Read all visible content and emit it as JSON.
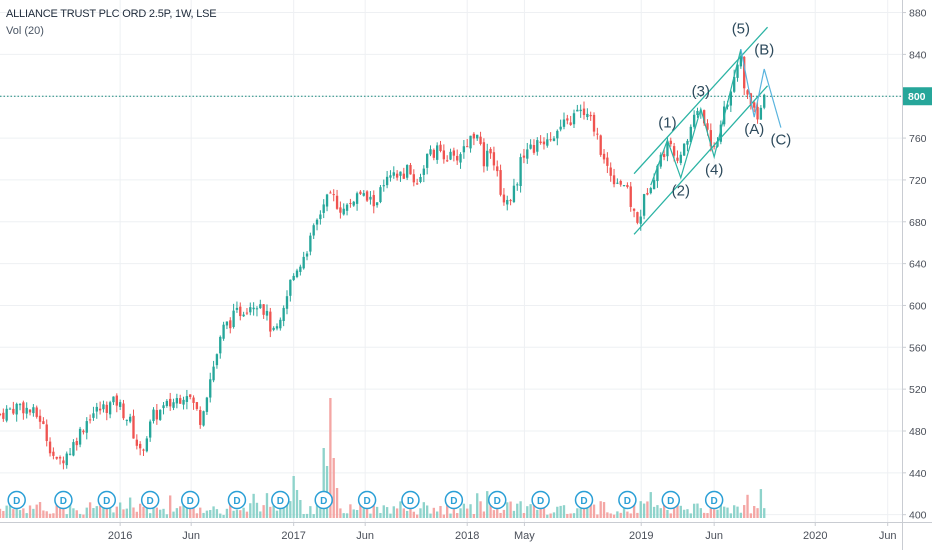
{
  "header": {
    "symbol_title": "ALLIANCE TRUST PLC ORD 2.5P, 1W, LSE",
    "volume_label": "Vol (20)"
  },
  "colors": {
    "up": "#26a69a",
    "down": "#ef5350",
    "vol_up": "#8ed3cb",
    "vol_down": "#f4a6a4",
    "grid": "#eef0f3",
    "axis_text": "#4a4f59",
    "price_line": "#1a8a7d",
    "channel": "#2bb3a4",
    "wave_label": "#2d4a5c",
    "projection": "#5ab4de",
    "badge_border": "#2a9fd6"
  },
  "chart_data": {
    "type": "candlestick",
    "title": "ALLIANCE TRUST PLC ORD 2.5P, 1W, LSE",
    "y_axis": {
      "ticks": [
        400,
        440,
        480,
        520,
        560,
        600,
        640,
        680,
        720,
        760,
        800,
        840,
        880
      ],
      "range": [
        393,
        892
      ]
    },
    "x_axis": {
      "ticks": [
        {
          "label": "2016",
          "date": "2016-01-04"
        },
        {
          "label": "Jun",
          "date": "2016-06-01"
        },
        {
          "label": "2017",
          "date": "2017-01-02"
        },
        {
          "label": "Jun",
          "date": "2017-06-01"
        },
        {
          "label": "2018",
          "date": "2018-01-01"
        },
        {
          "label": "May",
          "date": "2018-05-01"
        },
        {
          "label": "2019",
          "date": "2019-01-01"
        },
        {
          "label": "Jun",
          "date": "2019-06-03"
        },
        {
          "label": "2020",
          "date": "2020-01-01"
        },
        {
          "label": "Jun",
          "date": "2020-06-01"
        }
      ],
      "range": [
        "2015-04-27",
        "2020-07-01"
      ]
    },
    "current_price": {
      "value": 800,
      "label": "800"
    },
    "price_anchors": [
      [
        "2015-04-27",
        496
      ],
      [
        "2015-06-08",
        505
      ],
      [
        "2015-07-20",
        492
      ],
      [
        "2015-08-24",
        448
      ],
      [
        "2015-09-21",
        462
      ],
      [
        "2015-11-02",
        496
      ],
      [
        "2015-12-28",
        508
      ],
      [
        "2016-01-25",
        488
      ],
      [
        "2016-02-15",
        458
      ],
      [
        "2016-03-14",
        494
      ],
      [
        "2016-04-25",
        508
      ],
      [
        "2016-05-23",
        518
      ],
      [
        "2016-06-20",
        492
      ],
      [
        "2016-07-11",
        530
      ],
      [
        "2016-08-08",
        578
      ],
      [
        "2016-09-05",
        592
      ],
      [
        "2016-10-03",
        602
      ],
      [
        "2016-10-24",
        605
      ],
      [
        "2016-11-21",
        572
      ],
      [
        "2016-12-05",
        580
      ],
      [
        "2016-12-26",
        622
      ],
      [
        "2017-01-16",
        642
      ],
      [
        "2017-02-06",
        662
      ],
      [
        "2017-03-06",
        698
      ],
      [
        "2017-03-27",
        702
      ],
      [
        "2017-04-17",
        690
      ],
      [
        "2017-05-15",
        706
      ],
      [
        "2017-06-19",
        698
      ],
      [
        "2017-07-17",
        718
      ],
      [
        "2017-08-28",
        728
      ],
      [
        "2017-09-18",
        718
      ],
      [
        "2017-10-09",
        742
      ],
      [
        "2017-11-06",
        748
      ],
      [
        "2017-12-04",
        738
      ],
      [
        "2018-01-08",
        760
      ],
      [
        "2018-01-22",
        768
      ],
      [
        "2018-02-05",
        730
      ],
      [
        "2018-02-19",
        752
      ],
      [
        "2018-03-19",
        698
      ],
      [
        "2018-04-09",
        710
      ],
      [
        "2018-04-30",
        748
      ],
      [
        "2018-05-28",
        752
      ],
      [
        "2018-06-18",
        762
      ],
      [
        "2018-07-16",
        768
      ],
      [
        "2018-08-13",
        780
      ],
      [
        "2018-08-27",
        786
      ],
      [
        "2018-09-24",
        772
      ],
      [
        "2018-10-15",
        738
      ],
      [
        "2018-11-05",
        722
      ],
      [
        "2018-11-26",
        716
      ],
      [
        "2018-12-24",
        678
      ],
      [
        "2019-01-14",
        712
      ],
      [
        "2019-02-18",
        748
      ],
      [
        "2019-03-04",
        756
      ],
      [
        "2019-03-25",
        738
      ],
      [
        "2019-04-15",
        772
      ],
      [
        "2019-04-29",
        788
      ],
      [
        "2019-05-20",
        770
      ],
      [
        "2019-06-03",
        745
      ],
      [
        "2019-06-24",
        790
      ],
      [
        "2019-07-15",
        812
      ],
      [
        "2019-07-29",
        838
      ],
      [
        "2019-08-05",
        810
      ],
      [
        "2019-08-19",
        792
      ],
      [
        "2019-09-02",
        783
      ],
      [
        "2019-09-16",
        797
      ]
    ],
    "volume_spikes": [
      [
        "2017-01-02",
        42
      ],
      [
        "2017-01-09",
        28
      ],
      [
        "2017-01-16",
        18
      ],
      [
        "2017-03-06",
        70
      ],
      [
        "2017-03-13",
        52
      ],
      [
        "2017-03-20",
        120
      ],
      [
        "2017-03-27",
        60
      ],
      [
        "2017-04-03",
        30
      ]
    ],
    "dividends": [
      "2015-06-01",
      "2015-09-07",
      "2015-12-07",
      "2016-03-07",
      "2016-05-30",
      "2016-09-05",
      "2016-12-05",
      "2017-03-06",
      "2017-06-05",
      "2017-09-04",
      "2017-12-04",
      "2018-03-05",
      "2018-06-04",
      "2018-09-03",
      "2018-12-03",
      "2019-03-04",
      "2019-06-03"
    ],
    "dividend_label": "D",
    "channel": {
      "lower": [
        [
          "2018-12-17",
          668
        ],
        [
          "2019-09-23",
          810
        ]
      ],
      "upper": [
        [
          "2018-12-17",
          726
        ],
        [
          "2019-09-23",
          866
        ]
      ]
    },
    "wave_path": [
      [
        "2019-01-21",
        715
      ],
      [
        "2019-02-25",
        758
      ],
      [
        "2019-03-25",
        722
      ],
      [
        "2019-05-06",
        788
      ],
      [
        "2019-06-03",
        742
      ],
      [
        "2019-07-29",
        845
      ]
    ],
    "projection_path": [
      [
        "2019-07-29",
        845
      ],
      [
        "2019-08-26",
        780
      ],
      [
        "2019-09-16",
        826
      ],
      [
        "2019-10-21",
        770
      ]
    ],
    "wave_labels": [
      {
        "text": "(1)",
        "date": "2019-02-25",
        "price": 770
      },
      {
        "text": "(2)",
        "date": "2019-03-25",
        "price": 705
      },
      {
        "text": "(3)",
        "date": "2019-05-06",
        "price": 800
      },
      {
        "text": "(4)",
        "date": "2019-06-03",
        "price": 725
      },
      {
        "text": "(5)",
        "date": "2019-07-29",
        "price": 860
      },
      {
        "text": "(A)",
        "date": "2019-08-26",
        "price": 764
      },
      {
        "text": "(B)",
        "date": "2019-09-16",
        "price": 840
      },
      {
        "text": "(C)",
        "date": "2019-10-21",
        "price": 754
      }
    ]
  }
}
